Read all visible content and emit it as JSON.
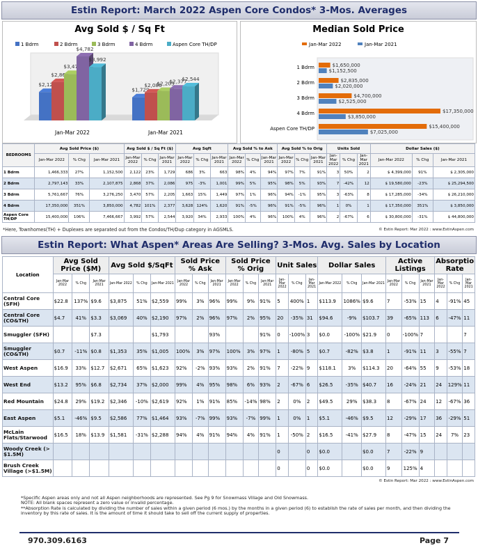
{
  "header1": {
    "title": "Estin Report:  March 2022 Aspen Core Condos* 3-Mos. Averages"
  },
  "chart_data": [
    {
      "type": "bar",
      "title": "Avg Sold $ / Sq Ft",
      "categories": [
        "Jan-Mar 2022",
        "Jan-Mar 2021"
      ],
      "series": [
        {
          "name": "1 Bdrm",
          "color": "#4472c4",
          "values": [
            2122,
            1729
          ],
          "value_labels": [
            "$2,122",
            "$1,729"
          ]
        },
        {
          "name": "2 Bdrm",
          "color": "#c0504d",
          "values": [
            2868,
            2086
          ],
          "value_labels": [
            "$2,868",
            "$2,086"
          ]
        },
        {
          "name": "3 Bdrm",
          "color": "#9bbb59",
          "values": [
            3470,
            2205
          ],
          "value_labels": [
            "$3,470",
            "$2,205"
          ]
        },
        {
          "name": "4 Bdrm",
          "color": "#8064a2",
          "values": [
            4782,
            2377
          ],
          "value_labels": [
            "$4,782",
            "$2,377"
          ]
        },
        {
          "name": "Aspen Core TH/DP",
          "color": "#4bacc6",
          "values": [
            3992,
            2544
          ],
          "value_labels": [
            "$3,992",
            "$2,544"
          ]
        }
      ]
    },
    {
      "type": "bar",
      "horizontal": true,
      "title": "Median Sold Price",
      "categories": [
        "1 Bdrm",
        "2 Bdrm",
        "3 Bdrm",
        "4 Bdrm",
        "Aspen Core TH/DP"
      ],
      "series": [
        {
          "name": "Jan-Mar 2022",
          "color": "#e36c09",
          "values": [
            1650000,
            2835000,
            4700000,
            17350000,
            15400000
          ],
          "value_labels": [
            "$1,650,000",
            "$2,835,000",
            "$4,700,000",
            "$17,350,000",
            "$15,400,000"
          ]
        },
        {
          "name": "Jan-Mar 2021",
          "color": "#4f81bd",
          "values": [
            1152500,
            2020000,
            2525000,
            3850000,
            7025000
          ],
          "value_labels": [
            "$1,152,500",
            "$2,020,000",
            "$2,525,000",
            "$3,850,000",
            "$7,025,000"
          ]
        }
      ]
    }
  ],
  "table1": {
    "row_header": "BEDROOMS",
    "columns": [
      "Avg Sold Price ($)",
      "Avg Sold $ / Sq Ft ($)",
      "Avg Sqft",
      "Avg Sold % to Ask",
      "Avg Sold % to Orig",
      "Units Sold",
      "Dollar Sales ($)"
    ],
    "subcolumns": [
      "Jan-Mar 2022",
      "% Chg",
      "Jan-Mar 2021"
    ],
    "rows": [
      {
        "label": "1 Bdrm",
        "cells": [
          "1,466,333",
          "27%",
          "1,152,500",
          "2,122",
          "23%",
          "1,729",
          "686",
          "3%",
          "663",
          "98%",
          "4%",
          "94%",
          "97%",
          "7%",
          "91%",
          "3",
          "50%",
          "2",
          "$ 4,399,000",
          "91%",
          "$ 2,305,000"
        ]
      },
      {
        "label": "2 Bdrm",
        "cells": [
          "2,797,143",
          "33%",
          "2,107,875",
          "2,868",
          "37%",
          "2,086",
          "975",
          "-3%",
          "1,001",
          "99%",
          "5%",
          "95%",
          "98%",
          "5%",
          "93%",
          "7",
          "-42%",
          "12",
          "$ 19,580,000",
          "-23%",
          "$ 25,294,500"
        ]
      },
      {
        "label": "3 Bdrm",
        "cells": [
          "5,761,667",
          "76%",
          "3,276,250",
          "3,470",
          "57%",
          "2,205",
          "1,663",
          "15%",
          "1,449",
          "97%",
          "1%",
          "96%",
          "94%",
          "-1%",
          "95%",
          "3",
          "-63%",
          "8",
          "$ 17,285,000",
          "-34%",
          "$ 26,210,000"
        ]
      },
      {
        "label": "4 Bdrm",
        "cells": [
          "17,350,000",
          "351%",
          "3,850,000",
          "4,782",
          "101%",
          "2,377",
          "3,628",
          "124%",
          "1,620",
          "91%",
          "-5%",
          "96%",
          "91%",
          "-5%",
          "96%",
          "1",
          "0%",
          "1",
          "$ 17,350,000",
          "351%",
          "$ 3,850,000"
        ]
      },
      {
        "label": "Aspen Core TH/DP",
        "cells": [
          "15,400,000",
          "106%",
          "7,466,667",
          "3,992",
          "57%",
          "2,544",
          "3,920",
          "34%",
          "2,933",
          "100%",
          "4%",
          "96%",
          "100%",
          "4%",
          "96%",
          "2",
          "-67%",
          "6",
          "$ 30,800,000",
          "-31%",
          "$ 44,800,000"
        ]
      }
    ]
  },
  "note1": "*Here, Townhomes(TH) + Duplexes are separated out from the Condos/TH/Dup category in AGSMLS.",
  "copyright1": "© Estin Report: Mar 2022 : www.EstinAspen.com",
  "header2": {
    "title": "Estin Report: What Aspen* Areas Are Selling? 3-Mos. Avg. Sales by Location"
  },
  "table2": {
    "row_header": "Location",
    "columns": [
      "Avg Sold Price ($M)",
      "Avg Sold $/SqFt",
      "Sold Price % Ask",
      "Sold Price % Orig",
      "Unit Sales",
      "Dollar Sales",
      "Active Listings",
      "Absorption Rate"
    ],
    "subcolumns": [
      "Jan-Mar 2022",
      "% Chg",
      "Jan-Mar 2021"
    ],
    "rows": [
      {
        "label": "Central Core (SFH)",
        "cells": [
          "$22.8",
          "137%",
          "$9.6",
          "$3,875",
          "51%",
          "$2,559",
          "99%",
          "3%",
          "96%",
          "99%",
          "9%",
          "91%",
          "5",
          "400%",
          "1",
          "$113.9",
          "1086%",
          "$9.6",
          "7",
          "-53%",
          "15",
          "4",
          "-91%",
          "45"
        ]
      },
      {
        "label": "Central Core (CO&TH)",
        "cells": [
          "$4.7",
          "41%",
          "$3.3",
          "$3,069",
          "40%",
          "$2,190",
          "97%",
          "2%",
          "96%",
          "97%",
          "2%",
          "95%",
          "20",
          "-35%",
          "31",
          "$94.6",
          "-9%",
          "$103.7",
          "39",
          "-65%",
          "113",
          "6",
          "-47%",
          "11"
        ]
      },
      {
        "label": "Smuggler (SFH)",
        "cells": [
          null,
          null,
          "$7.3",
          null,
          null,
          "$1,793",
          null,
          null,
          "93%",
          null,
          null,
          "91%",
          "0",
          "-100%",
          "3",
          "$0.0",
          "-100%",
          "$21.9",
          "0",
          "-100%",
          "7",
          null,
          null,
          "7"
        ]
      },
      {
        "label": "Smuggler (CO&TH)",
        "cells": [
          "$0.7",
          "-11%",
          "$0.8",
          "$1,353",
          "35%",
          "$1,005",
          "100%",
          "3%",
          "97%",
          "100%",
          "3%",
          "97%",
          "1",
          "-80%",
          "5",
          "$0.7",
          "-82%",
          "$3.8",
          "1",
          "-91%",
          "11",
          "3",
          "-55%",
          "7"
        ]
      },
      {
        "label": "West Aspen",
        "cells": [
          "$16.9",
          "33%",
          "$12.7",
          "$2,671",
          "65%",
          "$1,623",
          "92%",
          "-2%",
          "93%",
          "93%",
          "2%",
          "91%",
          "7",
          "-22%",
          "9",
          "$118.1",
          "3%",
          "$114.3",
          "20",
          "-64%",
          "55",
          "9",
          "-53%",
          "18"
        ]
      },
      {
        "label": "West End",
        "cells": [
          "$13.2",
          "95%",
          "$6.8",
          "$2,734",
          "37%",
          "$2,000",
          "99%",
          "4%",
          "95%",
          "98%",
          "6%",
          "93%",
          "2",
          "-67%",
          "6",
          "$26.5",
          "-35%",
          "$40.7",
          "16",
          "-24%",
          "21",
          "24",
          "129%",
          "11"
        ]
      },
      {
        "label": "Red Mountain",
        "cells": [
          "$24.8",
          "29%",
          "$19.2",
          "$2,346",
          "-10%",
          "$2,619",
          "92%",
          "1%",
          "91%",
          "85%",
          "-14%",
          "98%",
          "2",
          "0%",
          "2",
          "$49.5",
          "29%",
          "$38.3",
          "8",
          "-67%",
          "24",
          "12",
          "-67%",
          "36"
        ]
      },
      {
        "label": "East Aspen",
        "cells": [
          "$5.1",
          "-46%",
          "$9.5",
          "$2,586",
          "77%",
          "$1,464",
          "93%",
          "-7%",
          "99%",
          "93%",
          "-7%",
          "99%",
          "1",
          "0%",
          "1",
          "$5.1",
          "-46%",
          "$9.5",
          "12",
          "-29%",
          "17",
          "36",
          "-29%",
          "51"
        ]
      },
      {
        "label": "McLain Flats/Starwood",
        "cells": [
          "$16.5",
          "18%",
          "$13.9",
          "$1,581",
          "-31%",
          "$2,288",
          "94%",
          "4%",
          "91%",
          "94%",
          "4%",
          "91%",
          "1",
          "-50%",
          "2",
          "$16.5",
          "-41%",
          "$27.9",
          "8",
          "-47%",
          "15",
          "24",
          "7%",
          "23"
        ]
      },
      {
        "label": "Woody Creek (> $1.5M)",
        "cells": [
          null,
          null,
          null,
          null,
          null,
          null,
          null,
          null,
          null,
          null,
          null,
          null,
          "0",
          null,
          "0",
          "$0.0",
          null,
          "$0.0",
          "7",
          "-22%",
          "9",
          null,
          null,
          null
        ]
      },
      {
        "label": "Brush Creek Village (>$1.5M)",
        "cells": [
          null,
          null,
          null,
          null,
          null,
          null,
          null,
          null,
          null,
          null,
          null,
          null,
          "0",
          null,
          "0",
          "$0.0",
          null,
          "$0.0",
          "9",
          "125%",
          "4",
          null,
          null,
          null
        ]
      }
    ]
  },
  "copyright2": "© Estin Report: Mar 2022 : www.EstinAspen.com",
  "notes": [
    "*Specific Aspen areas only and not all Aspen neighborhoods are represented. See Pg 9 for Snowmass Village and Old Snowmass.",
    "NOTE: All blank spaces represent a zero value or invalid percentage.",
    "**Absorption Rate is calculated by dividing the number of sales within a given period (6 mos.) by the months in a given period (6) to establish the rate of sales per month, and then dividing the inventory by this rate of sales. It is the amount of time it should take to sell off the current supply of properties."
  ],
  "footer": {
    "phone": "970.309.6163",
    "page": "Page 7"
  }
}
